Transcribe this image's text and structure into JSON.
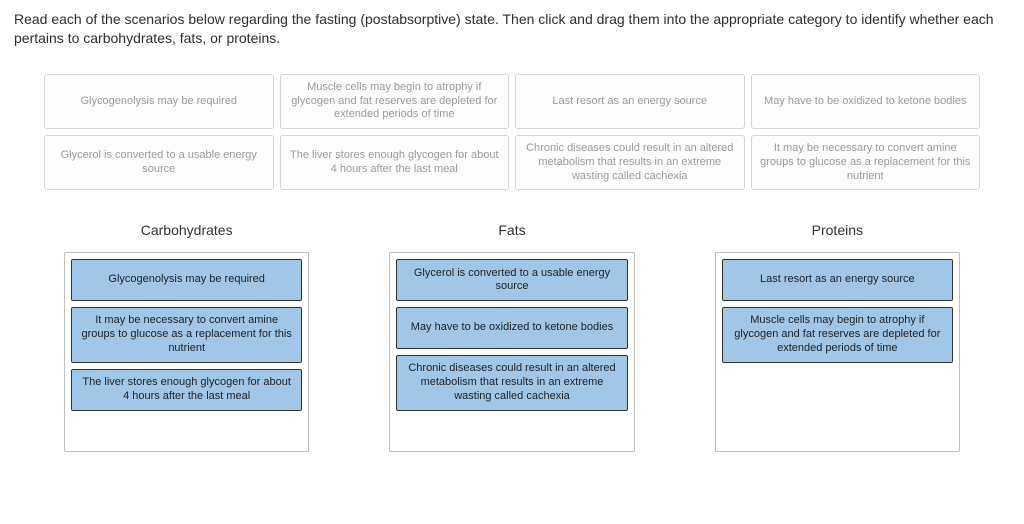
{
  "instructions": "Read each of the scenarios below regarding the fasting (postabsorptive) state. Then click and drag them into the appropriate category to identify whether each pertains to carbohydrates, fats, or proteins.",
  "pool": {
    "row1": [
      "Glycogenolysis may be required",
      "Muscle cells may begin to atrophy if glycogen and fat reserves are depleted for extended periods of time",
      "Last resort as an energy source",
      "May have to be oxidized to ketone bodies"
    ],
    "row2": [
      "Glycerol is converted to a usable energy source",
      "The liver stores enough glycogen for about 4 hours after the last meal",
      "Chronic diseases could result in an altered metabolism that results in an extreme wasting called cachexia",
      "It may be necessary to convert amine groups to glucose as a replacement for this nutrient"
    ]
  },
  "categories": [
    {
      "title": "Carbohydrates",
      "items": [
        "Glycogenolysis may be required",
        "It may be necessary to convert amine groups to glucose as a replacement for this nutrient",
        "The liver stores enough glycogen for about 4 hours after the last meal"
      ]
    },
    {
      "title": "Fats",
      "items": [
        "Glycerol is converted to a usable energy source",
        "May have to be oxidized to ketone bodies",
        "Chronic diseases could result in an altered metabolism that results in an extreme wasting called cachexia"
      ]
    },
    {
      "title": "Proteins",
      "items": [
        "Last resort as an energy source",
        "Muscle cells may begin to atrophy if glycogen and fat reserves are depleted for extended periods of time"
      ]
    }
  ],
  "colors": {
    "placed_bg": "#a0c7e8",
    "placed_border": "#333333",
    "pool_card_border": "#d5d5d5",
    "pool_card_text": "#9a9a9a",
    "dropzone_border": "#bfbfbf",
    "page_bg": "#ffffff"
  }
}
